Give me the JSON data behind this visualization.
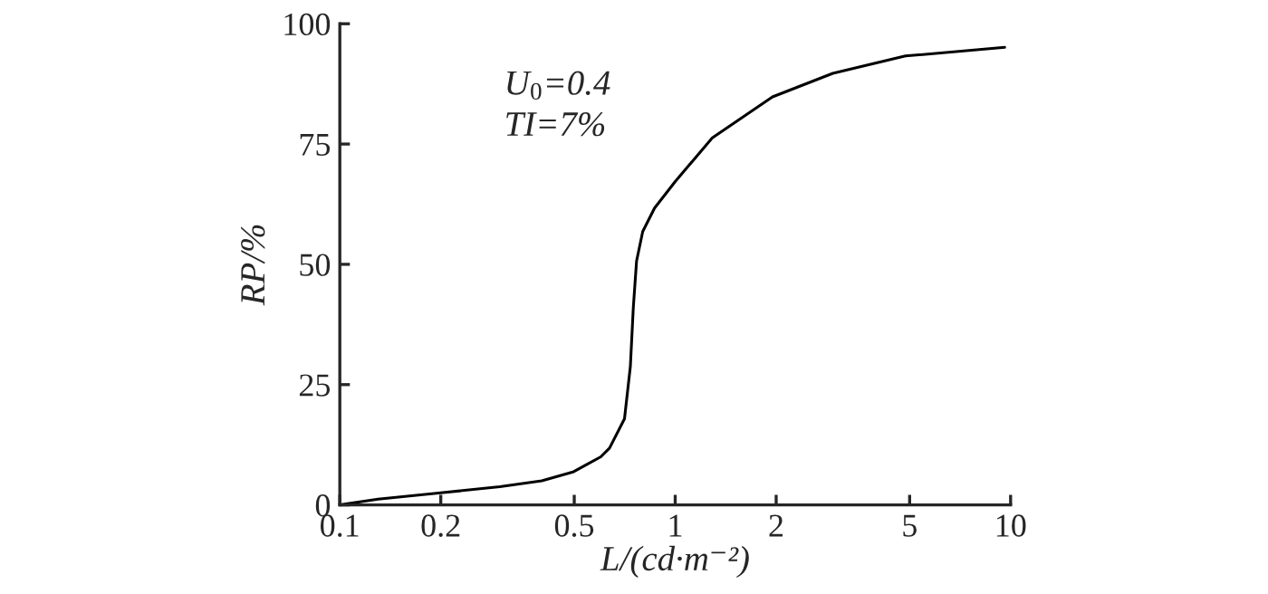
{
  "chart_data": {
    "type": "line",
    "xlabel": "L/(cd·m⁻²)",
    "ylabel": "RP/%",
    "log": "x",
    "x": [
      0.1,
      0.13,
      0.2,
      0.3,
      0.4,
      0.498,
      0.6,
      0.637,
      0.706,
      0.735,
      0.75,
      0.767,
      0.8,
      0.868,
      1.0,
      1.29,
      1.95,
      2.95,
      4.86,
      9.6
    ],
    "series": [
      {
        "color": "#000000",
        "values": [
          0,
          1.2,
          2.5,
          3.8,
          5.0,
          6.9,
          10,
          11.8,
          17.9,
          28.8,
          41,
          50.7,
          56.8,
          61.7,
          67.2,
          76.3,
          84.8,
          89.7,
          93.3,
          95.1
        ]
      }
    ],
    "xlim": [
      0.1,
      10
    ],
    "xticks": [
      0.1,
      0.2,
      0.5,
      1,
      2,
      5,
      10
    ],
    "ylim": [
      0,
      100
    ],
    "yticks": [
      0,
      25,
      50,
      75,
      100
    ],
    "annotations": [
      "U$_{0}$=0.4",
      "TI=7%"
    ],
    "grid": false,
    "legend": false,
    "marker": "none",
    "line_style": "solid"
  }
}
